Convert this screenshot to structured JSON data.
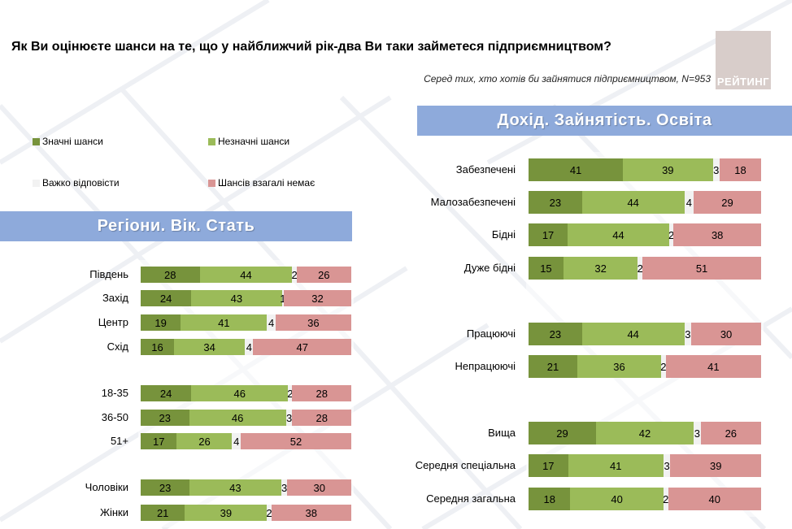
{
  "header": {
    "title": "Як Ви оцінюєте шанси на те, що у найближчий рік-два Ви таки займетеся підприємництвом?",
    "subtitle": "Серед тих, хто хотів би зайнятися підприємництвом, N=953",
    "logo_text": "РЕЙТИНГ"
  },
  "colors": {
    "significant": "#77933c",
    "insignificant": "#9bbb59",
    "hard": "#f2f2f2",
    "none": "#d99594",
    "banner": "#8eaadb"
  },
  "legend": [
    {
      "key": "significant",
      "label": "Значні шанси"
    },
    {
      "key": "insignificant",
      "label": "Незначні шанси"
    },
    {
      "key": "hard",
      "label": "Важко відповісти"
    },
    {
      "key": "none",
      "label": "Шансів взагалі немає"
    }
  ],
  "banners": {
    "left": "Регіони. Вік. Стать",
    "right": "Дохід. Зайнятість. Освіта"
  },
  "chart_data": [
    {
      "type": "bar",
      "orientation": "horizontal",
      "stacked": true,
      "title": "Регіони. Вік. Стать",
      "categories": [
        "Південь",
        "Захід",
        "Центр",
        "Схід",
        "18-35",
        "36-50",
        "51+",
        "Чоловіки",
        "Жінки"
      ],
      "series": [
        {
          "name": "Значні шанси",
          "values": [
            28,
            24,
            19,
            16,
            24,
            23,
            17,
            23,
            21
          ]
        },
        {
          "name": "Незначні шанси",
          "values": [
            44,
            43,
            41,
            34,
            46,
            46,
            26,
            43,
            39
          ]
        },
        {
          "name": "Важко відповісти",
          "values": [
            2,
            1,
            4,
            4,
            2,
            3,
            4,
            3,
            2
          ]
        },
        {
          "name": "Шансів взагалі немає",
          "values": [
            26,
            32,
            36,
            47,
            28,
            28,
            52,
            30,
            38
          ]
        }
      ]
    },
    {
      "type": "bar",
      "orientation": "horizontal",
      "stacked": true,
      "title": "Дохід. Зайнятість. Освіта",
      "categories": [
        "Забезпечені",
        "Малозабезпечені",
        "Бідні",
        "Дуже бідні",
        "Працюючі",
        "Непрацюючі",
        "Вища",
        "Середня спеціальна",
        "Середня загальна"
      ],
      "series": [
        {
          "name": "Значні шанси",
          "values": [
            41,
            23,
            17,
            15,
            23,
            21,
            29,
            17,
            18
          ]
        },
        {
          "name": "Незначні шанси",
          "values": [
            39,
            44,
            44,
            32,
            44,
            36,
            42,
            41,
            40
          ]
        },
        {
          "name": "Важко відповісти",
          "values": [
            3,
            4,
            2,
            2,
            3,
            2,
            3,
            3,
            2
          ]
        },
        {
          "name": "Шансів взагалі немає",
          "values": [
            18,
            29,
            38,
            51,
            30,
            41,
            26,
            39,
            40
          ]
        }
      ]
    }
  ]
}
